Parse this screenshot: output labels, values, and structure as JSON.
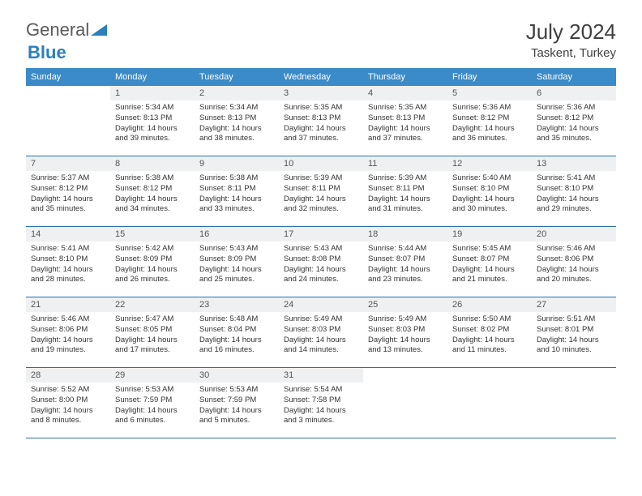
{
  "logo": {
    "text_general": "General",
    "text_blue": "Blue"
  },
  "title": {
    "month_year": "July 2024",
    "location": "Taskent, Turkey"
  },
  "header_color": "#3b8bc8",
  "row_border_color": "#2a6fa8",
  "daynum_bg": "#eef0f2",
  "weekdays": [
    "Sunday",
    "Monday",
    "Tuesday",
    "Wednesday",
    "Thursday",
    "Friday",
    "Saturday"
  ],
  "weeks": [
    [
      null,
      {
        "n": "1",
        "sr": "5:34 AM",
        "ss": "8:13 PM",
        "dl": "14 hours and 39 minutes."
      },
      {
        "n": "2",
        "sr": "5:34 AM",
        "ss": "8:13 PM",
        "dl": "14 hours and 38 minutes."
      },
      {
        "n": "3",
        "sr": "5:35 AM",
        "ss": "8:13 PM",
        "dl": "14 hours and 37 minutes."
      },
      {
        "n": "4",
        "sr": "5:35 AM",
        "ss": "8:13 PM",
        "dl": "14 hours and 37 minutes."
      },
      {
        "n": "5",
        "sr": "5:36 AM",
        "ss": "8:12 PM",
        "dl": "14 hours and 36 minutes."
      },
      {
        "n": "6",
        "sr": "5:36 AM",
        "ss": "8:12 PM",
        "dl": "14 hours and 35 minutes."
      }
    ],
    [
      {
        "n": "7",
        "sr": "5:37 AM",
        "ss": "8:12 PM",
        "dl": "14 hours and 35 minutes."
      },
      {
        "n": "8",
        "sr": "5:38 AM",
        "ss": "8:12 PM",
        "dl": "14 hours and 34 minutes."
      },
      {
        "n": "9",
        "sr": "5:38 AM",
        "ss": "8:11 PM",
        "dl": "14 hours and 33 minutes."
      },
      {
        "n": "10",
        "sr": "5:39 AM",
        "ss": "8:11 PM",
        "dl": "14 hours and 32 minutes."
      },
      {
        "n": "11",
        "sr": "5:39 AM",
        "ss": "8:11 PM",
        "dl": "14 hours and 31 minutes."
      },
      {
        "n": "12",
        "sr": "5:40 AM",
        "ss": "8:10 PM",
        "dl": "14 hours and 30 minutes."
      },
      {
        "n": "13",
        "sr": "5:41 AM",
        "ss": "8:10 PM",
        "dl": "14 hours and 29 minutes."
      }
    ],
    [
      {
        "n": "14",
        "sr": "5:41 AM",
        "ss": "8:10 PM",
        "dl": "14 hours and 28 minutes."
      },
      {
        "n": "15",
        "sr": "5:42 AM",
        "ss": "8:09 PM",
        "dl": "14 hours and 26 minutes."
      },
      {
        "n": "16",
        "sr": "5:43 AM",
        "ss": "8:09 PM",
        "dl": "14 hours and 25 minutes."
      },
      {
        "n": "17",
        "sr": "5:43 AM",
        "ss": "8:08 PM",
        "dl": "14 hours and 24 minutes."
      },
      {
        "n": "18",
        "sr": "5:44 AM",
        "ss": "8:07 PM",
        "dl": "14 hours and 23 minutes."
      },
      {
        "n": "19",
        "sr": "5:45 AM",
        "ss": "8:07 PM",
        "dl": "14 hours and 21 minutes."
      },
      {
        "n": "20",
        "sr": "5:46 AM",
        "ss": "8:06 PM",
        "dl": "14 hours and 20 minutes."
      }
    ],
    [
      {
        "n": "21",
        "sr": "5:46 AM",
        "ss": "8:06 PM",
        "dl": "14 hours and 19 minutes."
      },
      {
        "n": "22",
        "sr": "5:47 AM",
        "ss": "8:05 PM",
        "dl": "14 hours and 17 minutes."
      },
      {
        "n": "23",
        "sr": "5:48 AM",
        "ss": "8:04 PM",
        "dl": "14 hours and 16 minutes."
      },
      {
        "n": "24",
        "sr": "5:49 AM",
        "ss": "8:03 PM",
        "dl": "14 hours and 14 minutes."
      },
      {
        "n": "25",
        "sr": "5:49 AM",
        "ss": "8:03 PM",
        "dl": "14 hours and 13 minutes."
      },
      {
        "n": "26",
        "sr": "5:50 AM",
        "ss": "8:02 PM",
        "dl": "14 hours and 11 minutes."
      },
      {
        "n": "27",
        "sr": "5:51 AM",
        "ss": "8:01 PM",
        "dl": "14 hours and 10 minutes."
      }
    ],
    [
      {
        "n": "28",
        "sr": "5:52 AM",
        "ss": "8:00 PM",
        "dl": "14 hours and 8 minutes."
      },
      {
        "n": "29",
        "sr": "5:53 AM",
        "ss": "7:59 PM",
        "dl": "14 hours and 6 minutes."
      },
      {
        "n": "30",
        "sr": "5:53 AM",
        "ss": "7:59 PM",
        "dl": "14 hours and 5 minutes."
      },
      {
        "n": "31",
        "sr": "5:54 AM",
        "ss": "7:58 PM",
        "dl": "14 hours and 3 minutes."
      },
      null,
      null,
      null
    ]
  ],
  "labels": {
    "sunrise": "Sunrise:",
    "sunset": "Sunset:",
    "daylight": "Daylight:"
  }
}
